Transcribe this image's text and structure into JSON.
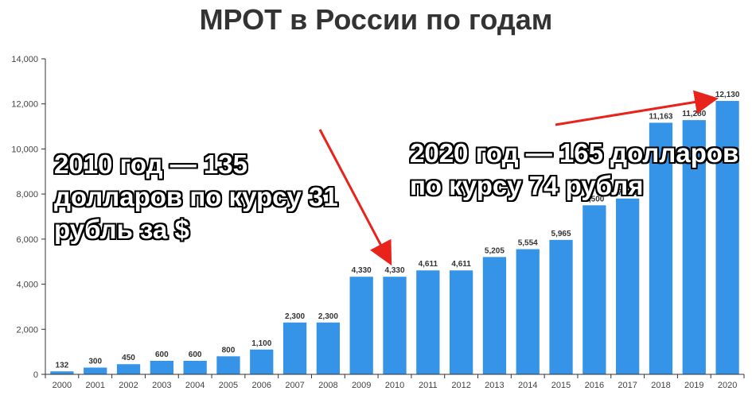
{
  "title": "МРОТ в России по годам",
  "annotations": {
    "left": [
      "2010 год — 135",
      "долларов по курсу 31",
      "рубль за $"
    ],
    "right": [
      "2020 год — 165 долларов",
      "по курсу 74 рубля"
    ]
  },
  "colors": {
    "bar": "#3593e8",
    "arrow": "#e8231c",
    "axis": "#333333",
    "label": "#333333"
  },
  "chart_data": {
    "type": "bar",
    "title": "МРОТ в России по годам",
    "xlabel": "",
    "ylabel": "",
    "ylim": [
      0,
      14000
    ],
    "yticks": [
      0,
      2000,
      4000,
      6000,
      8000,
      10000,
      12000,
      14000
    ],
    "ytick_labels": [
      "0",
      "2,000",
      "4,000",
      "6,000",
      "8,000",
      "10,000",
      "12,000",
      "14,000"
    ],
    "grid": false,
    "categories": [
      "2000",
      "2001",
      "2002",
      "2003",
      "2004",
      "2005",
      "2006",
      "2007",
      "2008",
      "2009",
      "2010",
      "2011",
      "2012",
      "2013",
      "2014",
      "2015",
      "2016",
      "2017",
      "2018",
      "2019",
      "2020"
    ],
    "values": [
      132,
      300,
      450,
      600,
      600,
      800,
      1100,
      2300,
      2300,
      4330,
      4330,
      4611,
      4611,
      5205,
      5554,
      5965,
      7500,
      7800,
      11163,
      11280,
      12130
    ],
    "value_labels": [
      "132",
      "300",
      "450",
      "600",
      "600",
      "800",
      "1,100",
      "2,300",
      "2,300",
      "4,330",
      "4,330",
      "4,611",
      "4,611",
      "5,205",
      "5,554",
      "5,965",
      "7,500",
      "7,800",
      "11,163",
      "11,280",
      "12,130"
    ]
  }
}
